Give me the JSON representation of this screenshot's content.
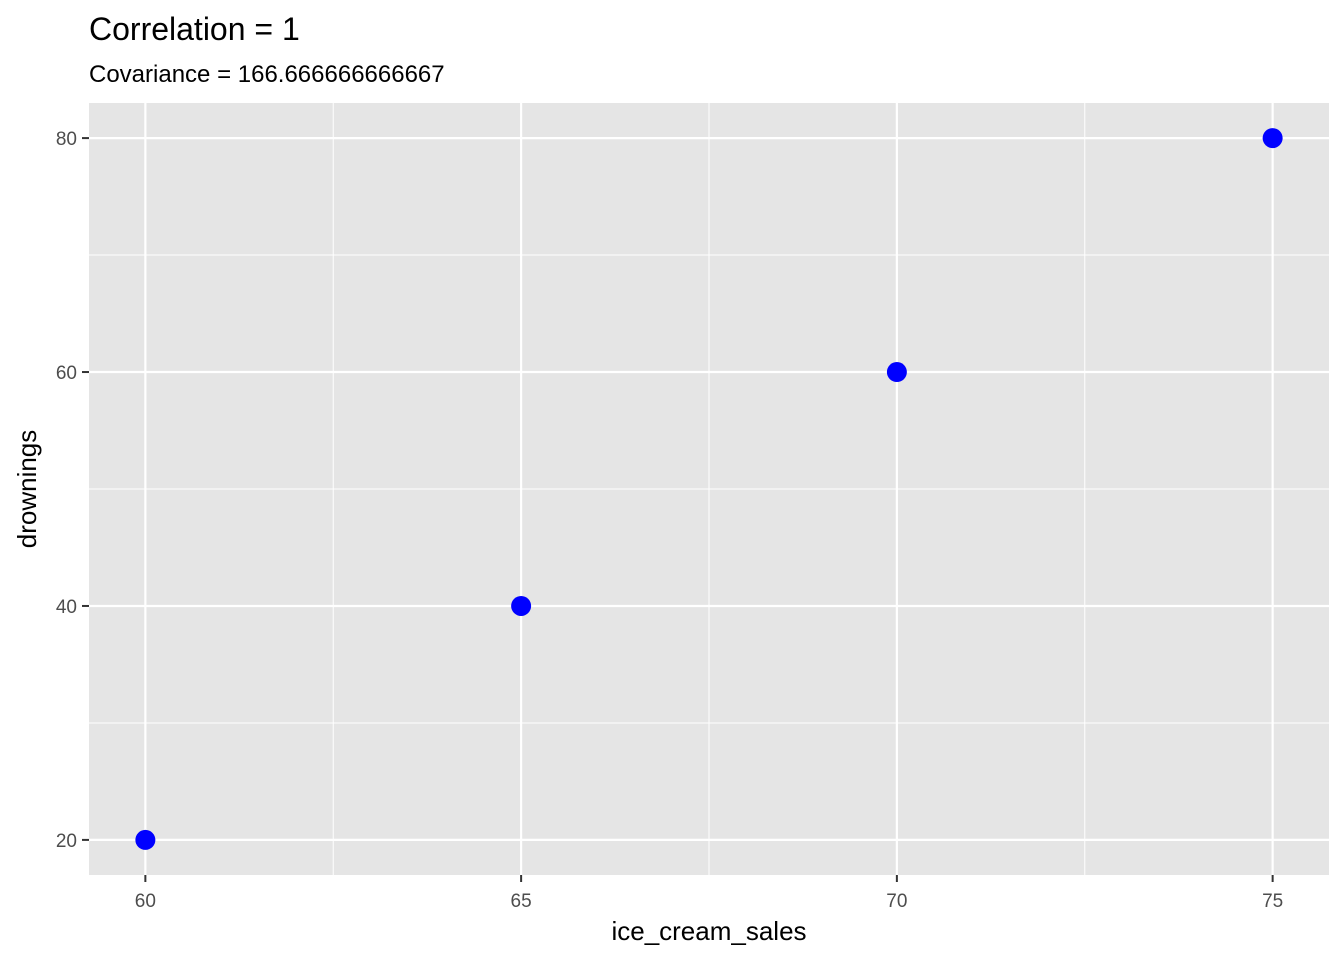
{
  "chart_data": {
    "type": "scatter",
    "title": "Correlation =  1",
    "subtitle": "Covariance = 166.666666666667",
    "xlabel": "ice_cream_sales",
    "ylabel": "drownings",
    "x": [
      60,
      65,
      70,
      75
    ],
    "y": [
      20,
      40,
      60,
      80
    ],
    "xlim": [
      59.25,
      75.75
    ],
    "ylim": [
      17,
      83
    ],
    "x_ticks": [
      60,
      65,
      70,
      75
    ],
    "x_tick_labels": [
      "60",
      "65",
      "70",
      "75"
    ],
    "x_minor_ticks": [
      62.5,
      67.5,
      72.5
    ],
    "y_ticks": [
      20,
      40,
      60,
      80
    ],
    "y_tick_labels": [
      "20",
      "40",
      "60",
      "80"
    ],
    "y_minor_ticks": [
      30,
      50,
      70
    ],
    "grid": true,
    "point_color": "#0000ff",
    "panel_color": "#e5e5e5",
    "grid_color": "#ffffff",
    "tick_color": "#333333"
  }
}
